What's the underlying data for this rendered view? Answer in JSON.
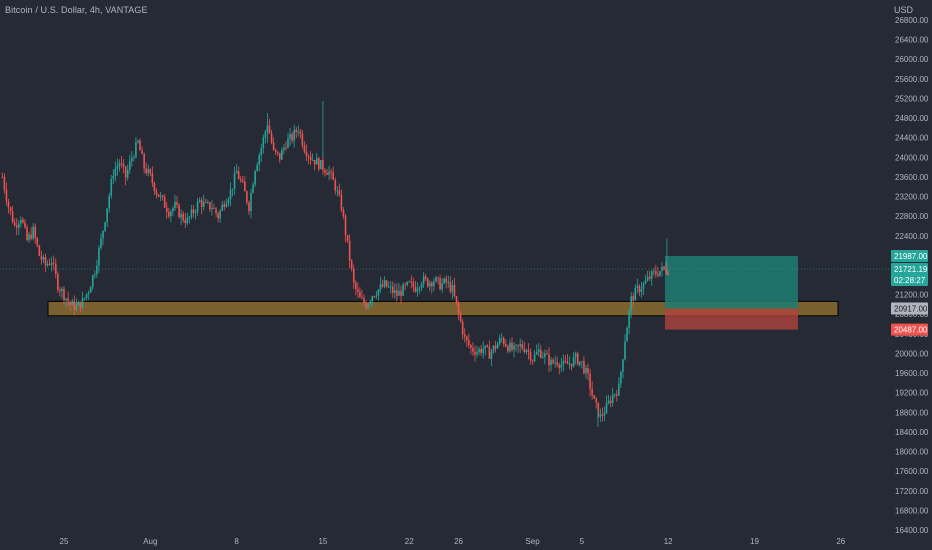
{
  "header": {
    "title": "Bitcoin / U.S. Dollar, 4h, VANTAGE",
    "currency": "USD"
  },
  "colors": {
    "background": "#262a35",
    "up_candle": "#26a69a",
    "down_candle": "#ef5350",
    "text": "#b2b5be",
    "support_zone": "#8a6a2e",
    "target_zone": "#1e7d72",
    "stop_zone": "#b0433f",
    "price_line": "#26a69a"
  },
  "chart_data": {
    "type": "candlestick",
    "title": "Bitcoin / U.S. Dollar, 4h, VANTAGE",
    "ylim": [
      16400,
      26800
    ],
    "y_ticks": [
      26800,
      26400,
      26000,
      25600,
      25200,
      24800,
      24400,
      24000,
      23600,
      23200,
      22800,
      22400,
      22000,
      21600,
      21200,
      20800,
      20400,
      20000,
      19600,
      19200,
      18800,
      18400,
      18000,
      17600,
      17200,
      16800,
      16400
    ],
    "y_tick_labels": [
      "26800.00",
      "26400.00",
      "26000.00",
      "25600.00",
      "25200.00",
      "24800.00",
      "24400.00",
      "24000.00",
      "23600.00",
      "23200.00",
      "22800.00",
      "22400.00",
      "22000.00",
      "21600.00",
      "21200.00",
      "20800.00",
      "20400.00",
      "20000.00",
      "19600.00",
      "19200.00",
      "18800.00",
      "18400.00",
      "18000.00",
      "17600.00",
      "17200.00",
      "16800.00",
      "16400.00"
    ],
    "x_ticks": [
      {
        "label": "25",
        "day": 0
      },
      {
        "label": "Aug",
        "day": 7
      },
      {
        "label": "8",
        "day": 14
      },
      {
        "label": "15",
        "day": 21
      },
      {
        "label": "22",
        "day": 28
      },
      {
        "label": "26",
        "day": 32
      },
      {
        "label": "Sep",
        "day": 38
      },
      {
        "label": "5",
        "day": 42
      },
      {
        "label": "12",
        "day": 49
      },
      {
        "label": "19",
        "day": 56
      },
      {
        "label": "26",
        "day": 63
      }
    ],
    "price_path": [
      [
        -5,
        23600
      ],
      [
        -4.5,
        23000
      ],
      [
        -4,
        22600
      ],
      [
        -3.5,
        22800
      ],
      [
        -3,
        22300
      ],
      [
        -2.5,
        22500
      ],
      [
        -2,
        22000
      ],
      [
        -1.5,
        21800
      ],
      [
        -1,
        21900
      ],
      [
        -0.5,
        21400
      ],
      [
        0,
        21200
      ],
      [
        0.5,
        21000
      ],
      [
        1,
        20950
      ],
      [
        1.5,
        21050
      ],
      [
        2,
        21300
      ],
      [
        2.5,
        21700
      ],
      [
        3,
        22300
      ],
      [
        3.5,
        23000
      ],
      [
        4,
        23700
      ],
      [
        4.5,
        23900
      ],
      [
        5,
        23600
      ],
      [
        5.5,
        24000
      ],
      [
        6,
        24300
      ],
      [
        6.5,
        23800
      ],
      [
        7,
        23600
      ],
      [
        7.5,
        23300
      ],
      [
        8,
        23100
      ],
      [
        8.5,
        22900
      ],
      [
        9,
        23000
      ],
      [
        9.5,
        22800
      ],
      [
        10,
        22700
      ],
      [
        10.5,
        22900
      ],
      [
        11,
        23100
      ],
      [
        11.5,
        23000
      ],
      [
        12,
        23000
      ],
      [
        12.5,
        22800
      ],
      [
        13,
        23100
      ],
      [
        13.5,
        23300
      ],
      [
        14,
        23700
      ],
      [
        14.5,
        23400
      ],
      [
        15,
        23000
      ],
      [
        15.5,
        23800
      ],
      [
        16,
        24200
      ],
      [
        16.5,
        24700
      ],
      [
        17,
        24100
      ],
      [
        17.5,
        24000
      ],
      [
        18,
        24300
      ],
      [
        18.5,
        24400
      ],
      [
        19,
        24600
      ],
      [
        19.5,
        24200
      ],
      [
        20,
        24000
      ],
      [
        20.5,
        23900
      ],
      [
        21,
        23800
      ],
      [
        21.5,
        23700
      ],
      [
        22,
        23400
      ],
      [
        22.5,
        23000
      ],
      [
        23,
        22200
      ],
      [
        23.5,
        21400
      ],
      [
        24,
        21100
      ],
      [
        24.5,
        21000
      ],
      [
        25,
        21200
      ],
      [
        25.5,
        21300
      ],
      [
        26,
        21400
      ],
      [
        26.5,
        21300
      ],
      [
        27,
        21200
      ],
      [
        27.5,
        21300
      ],
      [
        28,
        21400
      ],
      [
        28.5,
        21350
      ],
      [
        29,
        21500
      ],
      [
        29.5,
        21450
      ],
      [
        30,
        21500
      ],
      [
        30.5,
        21400
      ],
      [
        31,
        21450
      ],
      [
        31.5,
        21300
      ],
      [
        32,
        20800
      ],
      [
        32.5,
        20300
      ],
      [
        33,
        20100
      ],
      [
        33.5,
        20050
      ],
      [
        34,
        20100
      ],
      [
        34.5,
        20000
      ],
      [
        35,
        20150
      ],
      [
        35.5,
        20300
      ],
      [
        36,
        20150
      ],
      [
        36.5,
        20050
      ],
      [
        37,
        20150
      ],
      [
        37.5,
        20100
      ],
      [
        38,
        19900
      ],
      [
        38.5,
        20050
      ],
      [
        39,
        19950
      ],
      [
        39.5,
        19800
      ],
      [
        40,
        19850
      ],
      [
        40.5,
        19750
      ],
      [
        41,
        19800
      ],
      [
        41.5,
        19900
      ],
      [
        42,
        19800
      ],
      [
        42.5,
        19500
      ],
      [
        43,
        19000
      ],
      [
        43.5,
        18700
      ],
      [
        44,
        18900
      ],
      [
        44.5,
        19150
      ],
      [
        45,
        19300
      ],
      [
        45.5,
        20300
      ],
      [
        46,
        21100
      ],
      [
        46.5,
        21300
      ],
      [
        47,
        21400
      ],
      [
        47.5,
        21550
      ],
      [
        48,
        21650
      ],
      [
        48.5,
        21700
      ],
      [
        49,
        21721
      ]
    ],
    "support_zone": {
      "day_start": -3,
      "day_end": 70,
      "price_low": 20870,
      "price_high": 21000
    },
    "position": {
      "day_start": 49,
      "day_end": 59,
      "entry": 20917,
      "take_profit": 21987,
      "stop_loss": 20487,
      "label_tp": "21987.00",
      "label_entry": "20917.00",
      "label_sl": "20487.00"
    },
    "last_price": {
      "value": 21721.19,
      "label": "21721.19",
      "countdown": "02:28:27"
    }
  }
}
